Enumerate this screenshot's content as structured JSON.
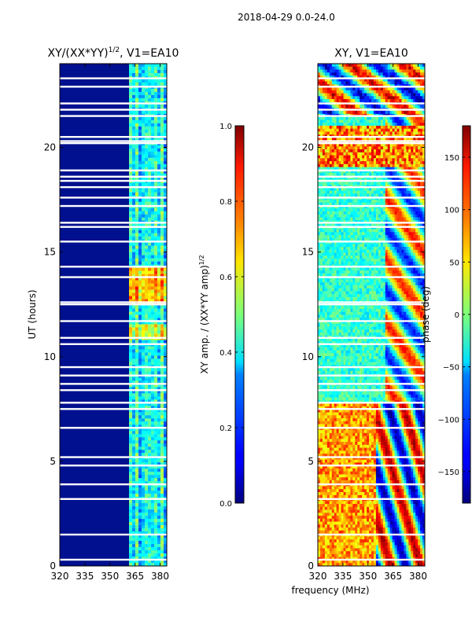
{
  "suptitle": "2018-04-29 0.0-24.0",
  "chart_data": [
    {
      "type": "heatmap",
      "title": "XY/(XX*YY)^1/2, V1=EA10",
      "title_main": "XY/(XX*YY)",
      "title_exp": "1/2",
      "title_suffix": ", V1=EA10",
      "xlabel": "",
      "ylabel": "UT (hours)",
      "xlim": [
        320,
        384
      ],
      "ylim": [
        0,
        24
      ],
      "xticks": [
        320,
        335,
        350,
        365,
        380
      ],
      "yticks": [
        0,
        5,
        10,
        15,
        20
      ],
      "colorbar": {
        "label": "XY amp. / (XX*YY amp)^1/2",
        "label_main": "XY amp. / (XX*YY amp)",
        "label_exp": "1/2",
        "range": [
          0.0,
          1.0
        ],
        "ticks": [
          "0.0",
          "0.2",
          "0.4",
          "0.6",
          "0.8",
          "1.0"
        ],
        "colormap": "jet"
      }
    },
    {
      "type": "heatmap",
      "title": "XY, V1=EA10",
      "xlabel": "frequency (MHz)",
      "ylabel": "",
      "xlim": [
        320,
        384
      ],
      "ylim": [
        0,
        24
      ],
      "xticks": [
        320,
        335,
        350,
        365,
        380
      ],
      "yticks": [
        0,
        5,
        10,
        15,
        20
      ],
      "colorbar": {
        "label": "phase (deg)",
        "range": [
          -180,
          180
        ],
        "ticks": [
          "150",
          "100",
          "50",
          "0",
          "−50",
          "−100",
          "−150"
        ],
        "colormap": "jet"
      }
    }
  ]
}
